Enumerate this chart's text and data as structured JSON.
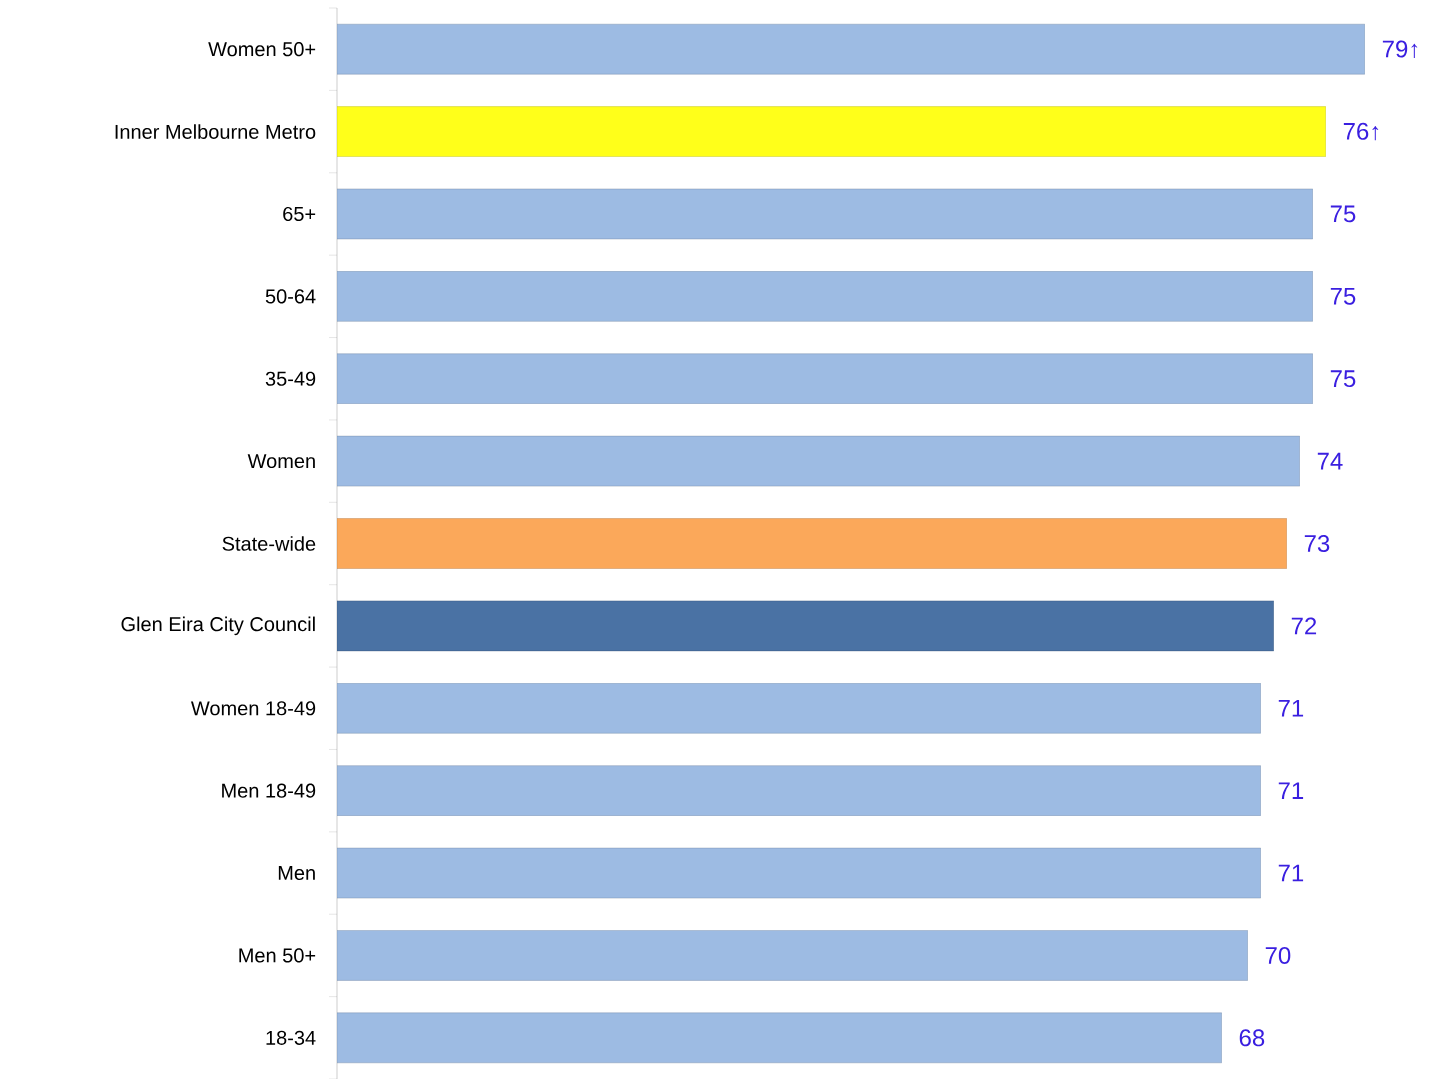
{
  "chart_data": {
    "type": "bar",
    "orientation": "horizontal",
    "tick_labels": "y",
    "categories": [
      "Women 50+",
      "Inner Melbourne Metro",
      "65+",
      "50-64",
      "35-49",
      "Women",
      "State-wide",
      "Glen Eira City Council",
      "Women 18-49",
      "Men 18-49",
      "Men",
      "Men 50+",
      "18-34"
    ],
    "values": [
      79,
      76,
      75,
      75,
      75,
      74,
      73,
      72,
      71,
      71,
      71,
      70,
      68
    ],
    "colors": [
      "#9dbbe3",
      "#ffff1a",
      "#9dbbe3",
      "#9dbbe3",
      "#9dbbe3",
      "#9dbbe3",
      "#fba85a",
      "#4a72a4",
      "#9dbbe3",
      "#9dbbe3",
      "#9dbbe3",
      "#9dbbe3",
      "#9dbbe3"
    ],
    "value_labels": [
      "79↑",
      "76↑",
      "75",
      "75",
      "75",
      "74",
      "73",
      "72",
      "71",
      "71",
      "71",
      "70",
      "68"
    ]
  }
}
